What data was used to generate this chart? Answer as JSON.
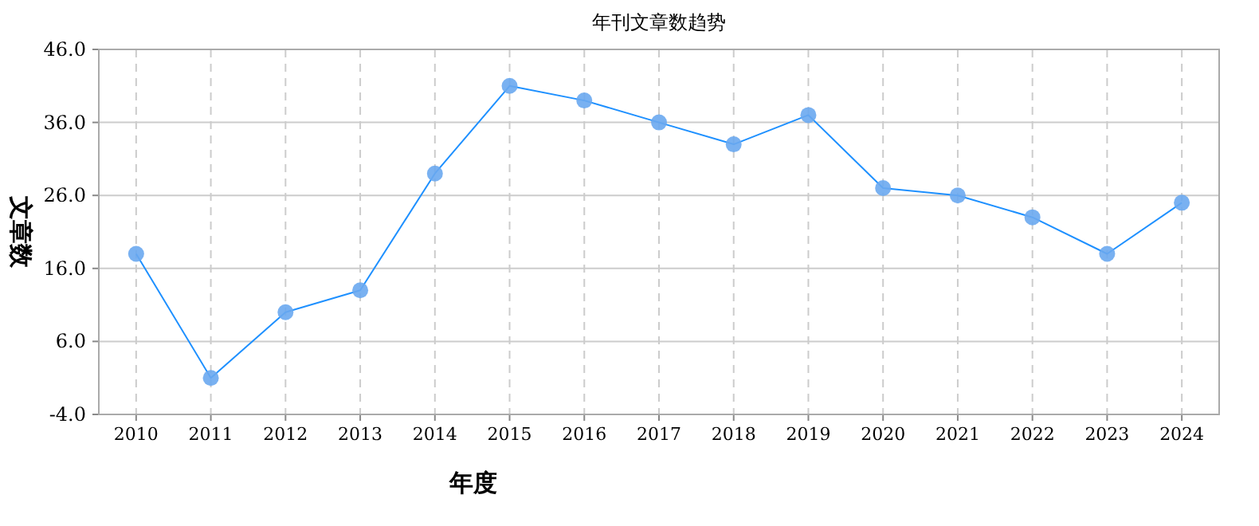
{
  "chart_data": {
    "type": "line",
    "title": "年刊文章数趋势",
    "xlabel": "年度",
    "ylabel": "文章数",
    "categories": [
      "2010",
      "2011",
      "2012",
      "2013",
      "2014",
      "2015",
      "2016",
      "2017",
      "2018",
      "2019",
      "2020",
      "2021",
      "2022",
      "2023",
      "2024"
    ],
    "series": [
      {
        "color": "#1e90ff",
        "values": [
          18,
          1,
          10,
          13,
          29,
          41,
          39,
          36,
          33,
          37,
          27,
          26,
          23,
          18,
          25
        ]
      }
    ],
    "ylim": [
      -4,
      46
    ],
    "yticks": [
      {
        "value": -4,
        "label": "-4.0"
      },
      {
        "value": 6,
        "label": "6.0"
      },
      {
        "value": 16,
        "label": "16.0"
      },
      {
        "value": 26,
        "label": "26.0"
      },
      {
        "value": 36,
        "label": "36.0"
      },
      {
        "value": 46,
        "label": "46.0"
      }
    ],
    "grid": true,
    "marker": "circle",
    "line_style": "solid"
  }
}
